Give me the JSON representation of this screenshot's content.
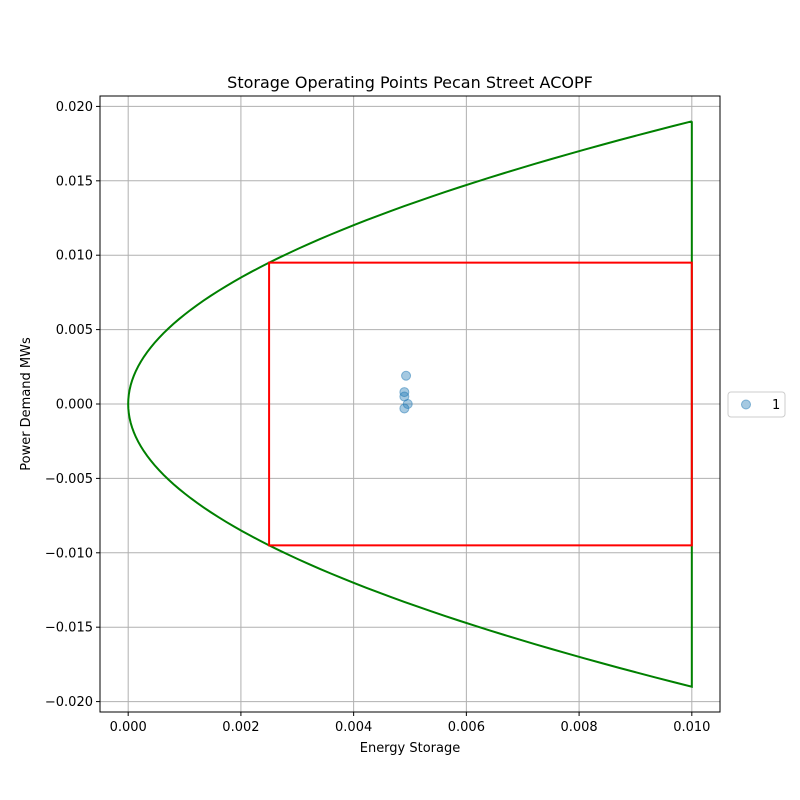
{
  "chart_data": {
    "type": "scatter",
    "title": "Storage Operating Points Pecan Street ACOPF",
    "xlabel": "Energy Storage",
    "ylabel": "Power Demand MWs",
    "xlim": [
      -0.0005,
      0.0105
    ],
    "ylim": [
      -0.0207,
      0.0207
    ],
    "x_ticks": [
      0.0,
      0.002,
      0.004,
      0.006,
      0.008,
      0.01
    ],
    "x_tick_labels": [
      "0.000",
      "0.002",
      "0.004",
      "0.006",
      "0.008",
      "0.010"
    ],
    "y_ticks": [
      0.02,
      0.015,
      0.01,
      0.005,
      0.0,
      -0.005,
      -0.01,
      -0.015,
      -0.02
    ],
    "y_tick_labels": [
      "0.020",
      "0.015",
      "0.010",
      "0.005",
      "0.000",
      "−0.005",
      "−0.010",
      "−0.015",
      "−0.020"
    ],
    "grid": true,
    "legend_position": "outside-right",
    "series": [
      {
        "name": "1",
        "kind": "scatter",
        "color": "#1f77b4",
        "x": [
          0.00493,
          0.0049,
          0.0049,
          0.00496,
          0.0049
        ],
        "y": [
          0.0019,
          0.0008,
          0.0005,
          0.0,
          -0.0003
        ]
      }
    ],
    "boundary_curve": {
      "color": "#008000",
      "e_max": 0.01,
      "p_at_e_max": 0.019
    },
    "rect_region": {
      "color": "#ff0000",
      "x_min": 0.0025,
      "x_max": 0.01,
      "y_min": -0.0095,
      "y_max": 0.0095
    }
  }
}
